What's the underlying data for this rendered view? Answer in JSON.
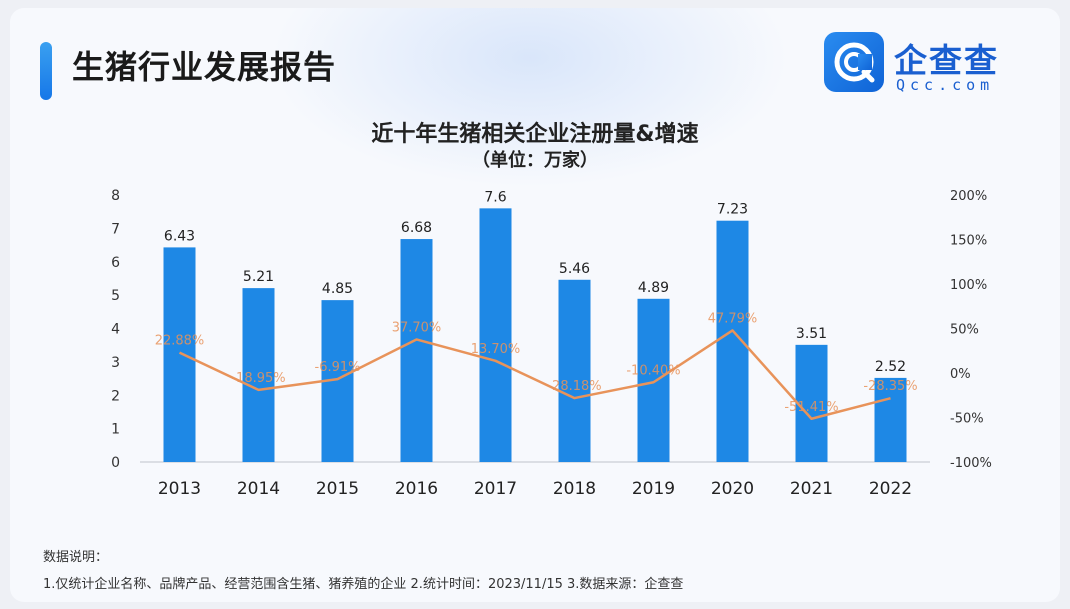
{
  "header": {
    "title": "生猪行业发展报告"
  },
  "logo": {
    "name": "企查查",
    "sub": "Qcc.com",
    "icon": "qcc-logo-icon"
  },
  "chart_data": {
    "type": "bar",
    "title": "近十年生猪相关企业注册量&增速",
    "subtitle": "（单位：万家）",
    "categories": [
      "2013",
      "2014",
      "2015",
      "2016",
      "2017",
      "2018",
      "2019",
      "2020",
      "2021",
      "2022"
    ],
    "series": [
      {
        "values": [
          6.43,
          5.21,
          4.85,
          6.68,
          7.6,
          5.46,
          4.89,
          7.23,
          3.51,
          2.52
        ],
        "labels": [
          "6.43",
          "5.21",
          "4.85",
          "6.68",
          "7.6",
          "5.46",
          "4.89",
          "7.23",
          "3.51",
          "2.52"
        ],
        "color": "#1e88e5",
        "axis": "left"
      },
      {
        "values": [
          22.88,
          -18.95,
          -6.91,
          37.7,
          13.7,
          -28.18,
          -10.4,
          47.79,
          -51.41,
          -28.35
        ],
        "labels": [
          "22.88%",
          "-18.95%",
          "-6.91%",
          "37.70%",
          "13.70%",
          "-28.18%",
          "-10.40%",
          "47.79%",
          "-51.41%",
          "-28.35%"
        ],
        "color": "#e8935a",
        "type": "line",
        "axis": "right"
      }
    ],
    "y_left": {
      "ticks": [
        "0",
        "1",
        "2",
        "3",
        "4",
        "5",
        "6",
        "7",
        "8"
      ],
      "lim": [
        0,
        8
      ]
    },
    "y_right": {
      "ticks": [
        "-100%",
        "-50%",
        "0%",
        "50%",
        "100%",
        "150%",
        "200%"
      ],
      "lim": [
        -100,
        200
      ]
    },
    "grid": false
  },
  "notes": {
    "heading": "数据说明：",
    "line": "1.仅统计企业名称、品牌产品、经营范围含生猪、猪养殖的企业   2.统计时间：2023/11/15   3.数据来源：企查查"
  }
}
